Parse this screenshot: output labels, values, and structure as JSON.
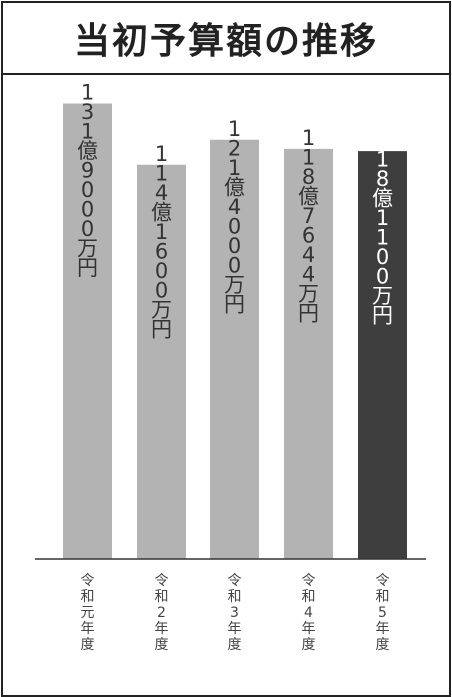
{
  "chart_data": {
    "type": "bar",
    "title": "当初予算額の推移",
    "categories": [
      "令和元年度",
      "令和2年度",
      "令和3年度",
      "令和4年度",
      "令和5年度"
    ],
    "values": [
      1319000,
      1141600,
      1214000,
      1187644,
      1181100
    ],
    "value_unit": "万円",
    "data_labels": [
      "131億9000万円",
      "114億1600万円",
      "121億4000万円",
      "118億7644万円",
      "118億1100万円"
    ],
    "highlight_index": 4,
    "ylim": [
      0,
      1500000
    ],
    "grid": false,
    "xlabel": "",
    "ylabel": ""
  },
  "colors": {
    "bar": "#b3b3b3",
    "highlight_bar": "#3e3e3e",
    "label": "#333333",
    "highlight_label": "#ffffff",
    "axis": "#333333",
    "category_text": "#444444",
    "border": "#222222"
  }
}
